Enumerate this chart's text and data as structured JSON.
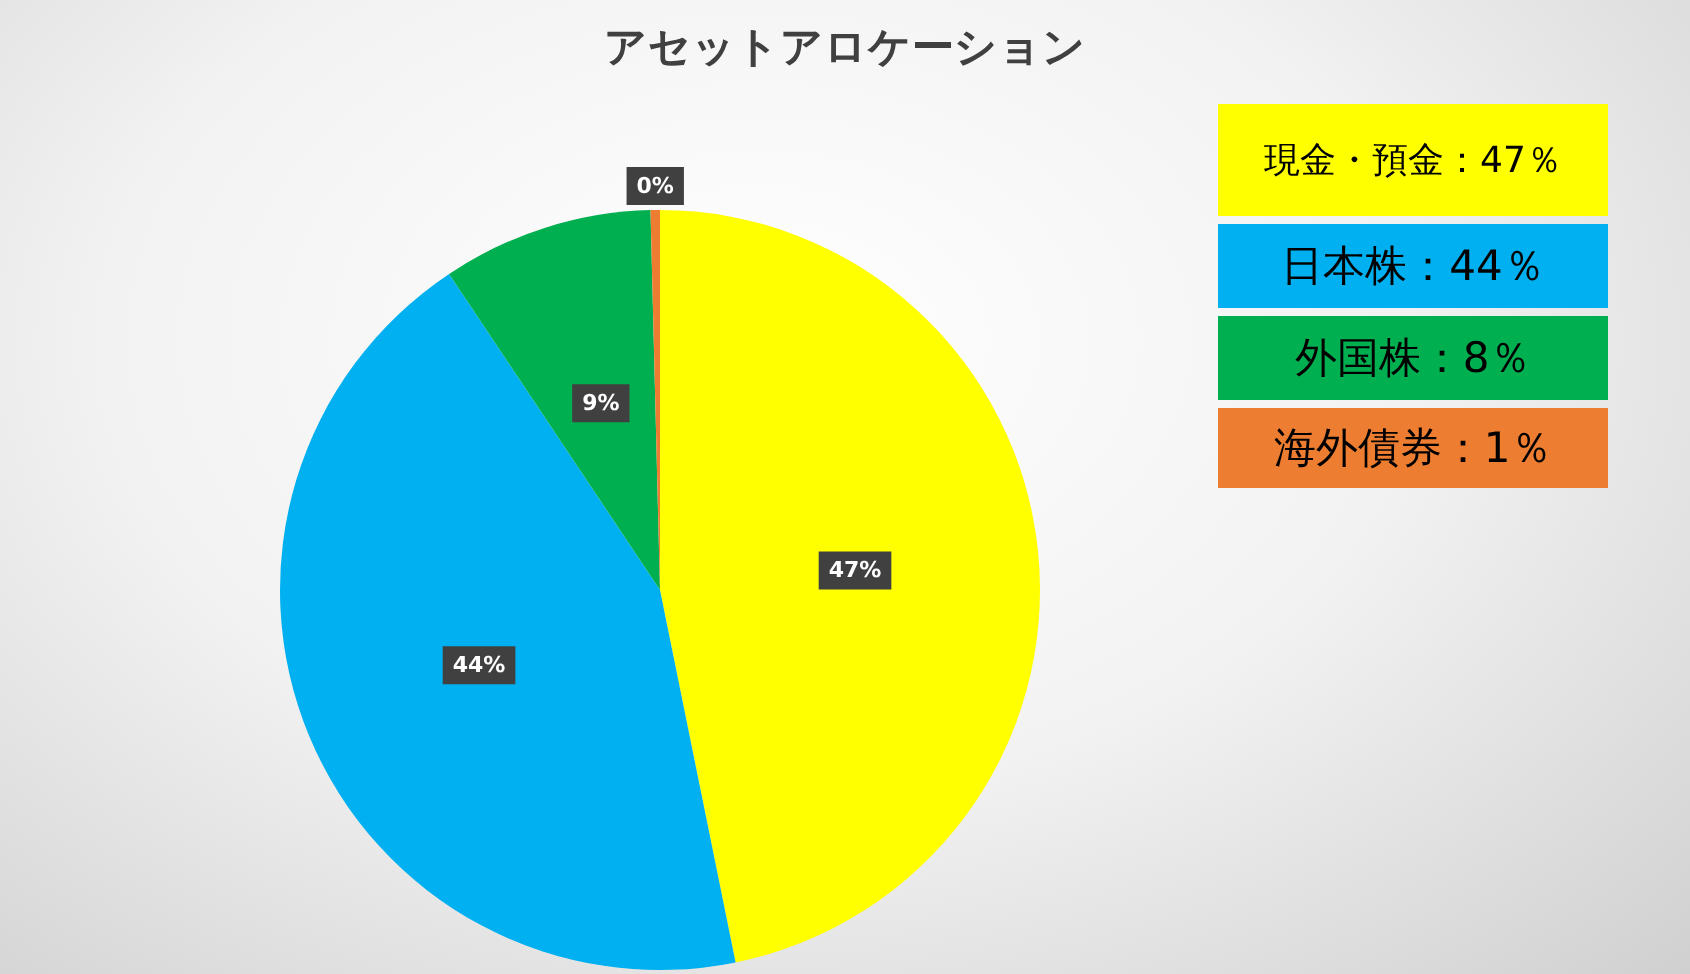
{
  "chart_data": {
    "type": "pie",
    "title": "アセットアロケーション",
    "categories": [
      null,
      null,
      null,
      null
    ],
    "values": [
      47,
      44,
      9,
      0.4
    ],
    "value_labels": [
      "47%",
      "44%",
      "9%",
      "0%"
    ],
    "colors": [
      "#ffff00",
      "#00b0f0",
      "#00b050",
      "#ed7d31"
    ],
    "annotations": [
      "現金・預金：47％",
      "日本株：44％",
      "外国株：8％",
      "海外債券：1％"
    ]
  }
}
